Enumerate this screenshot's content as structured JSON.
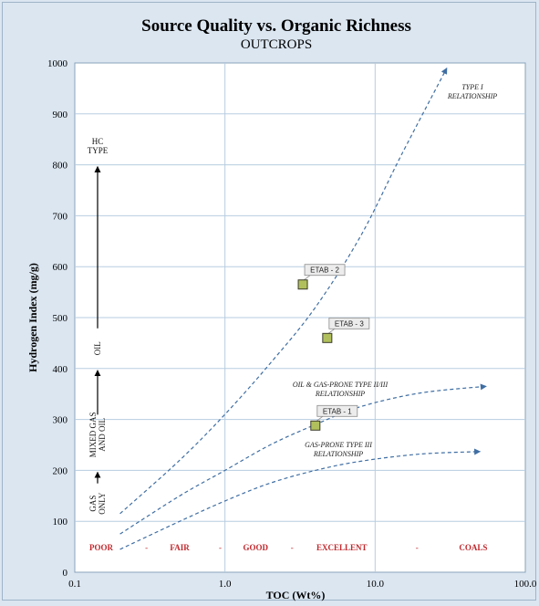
{
  "chart_data": {
    "type": "scatter",
    "title": "Source Quality vs. Organic Richness",
    "subtitle": "OUTCROPS",
    "xlabel": "TOC (Wt%)",
    "ylabel": "Hydrogen Index (mg/g)",
    "xscale": "log",
    "xlim": [
      0.1,
      100
    ],
    "ylim": [
      0,
      1000
    ],
    "x_ticks": [
      "0.1",
      "1.0",
      "10.0",
      "100.0"
    ],
    "y_ticks": [
      "0",
      "100",
      "200",
      "300",
      "400",
      "500",
      "600",
      "700",
      "800",
      "900",
      "1000"
    ],
    "grid": true,
    "points": [
      {
        "label": "ETAB - 2",
        "x": 3.3,
        "y": 565
      },
      {
        "label": "ETAB - 3",
        "x": 4.8,
        "y": 460
      },
      {
        "label": "ETAB - 1",
        "x": 4.0,
        "y": 288
      }
    ],
    "curves": [
      {
        "label_lines": [
          "TYPE I",
          "RELATIONSHIP"
        ],
        "x": [
          0.2,
          0.5,
          1.0,
          2.0,
          4.0,
          8.0,
          15.0,
          30.0
        ],
        "y": [
          115,
          220,
          310,
          410,
          520,
          660,
          820,
          990
        ]
      },
      {
        "label_lines": [
          "OIL & GAS-PRONE TYPE II/III",
          "RELATIONSHIP"
        ],
        "x": [
          0.2,
          0.5,
          1.0,
          2.0,
          4.0,
          8.0,
          20.0,
          55.0
        ],
        "y": [
          75,
          150,
          200,
          250,
          290,
          325,
          352,
          365
        ]
      },
      {
        "label_lines": [
          "GAS-PRONE TYPE III",
          "RELATIONSHIP"
        ],
        "x": [
          0.2,
          0.5,
          1.0,
          2.0,
          4.0,
          8.0,
          20.0,
          50.0
        ],
        "y": [
          45,
          100,
          140,
          175,
          200,
          218,
          232,
          237
        ]
      }
    ],
    "hc_type": {
      "header_lines": [
        "HC",
        "TYPE"
      ],
      "zones": [
        {
          "lines": [
            "GAS",
            "ONLY"
          ],
          "y_from": 100,
          "y_to": 200
        },
        {
          "lines": [
            "MIXED GAS",
            "AND OIL"
          ],
          "y_from": 200,
          "y_to": 400
        },
        {
          "lines": [
            "OIL"
          ],
          "y_from": 400,
          "y_to": 800
        }
      ]
    },
    "richness_classes": [
      {
        "label": "POOR",
        "x": 0.15
      },
      {
        "label": "FAIR",
        "x": 0.5
      },
      {
        "label": "GOOD",
        "x": 1.6
      },
      {
        "label": "EXCELLENT",
        "x": 6.0
      },
      {
        "label": "COALS",
        "x": 45.0
      }
    ],
    "richness_separators": [
      {
        "label": "-",
        "x": 0.3
      },
      {
        "label": "-",
        "x": 0.93
      },
      {
        "label": "-",
        "x": 2.8
      },
      {
        "label": "-",
        "x": 19.0
      }
    ],
    "richness_y": 50,
    "colors": {
      "background": "#dbe6f1",
      "plot_area": "#ffffff",
      "grid": "#b7cde0",
      "curve": "#3f6ea3",
      "point_fill": "#b1c05c",
      "class_text": "#c0282d"
    }
  }
}
